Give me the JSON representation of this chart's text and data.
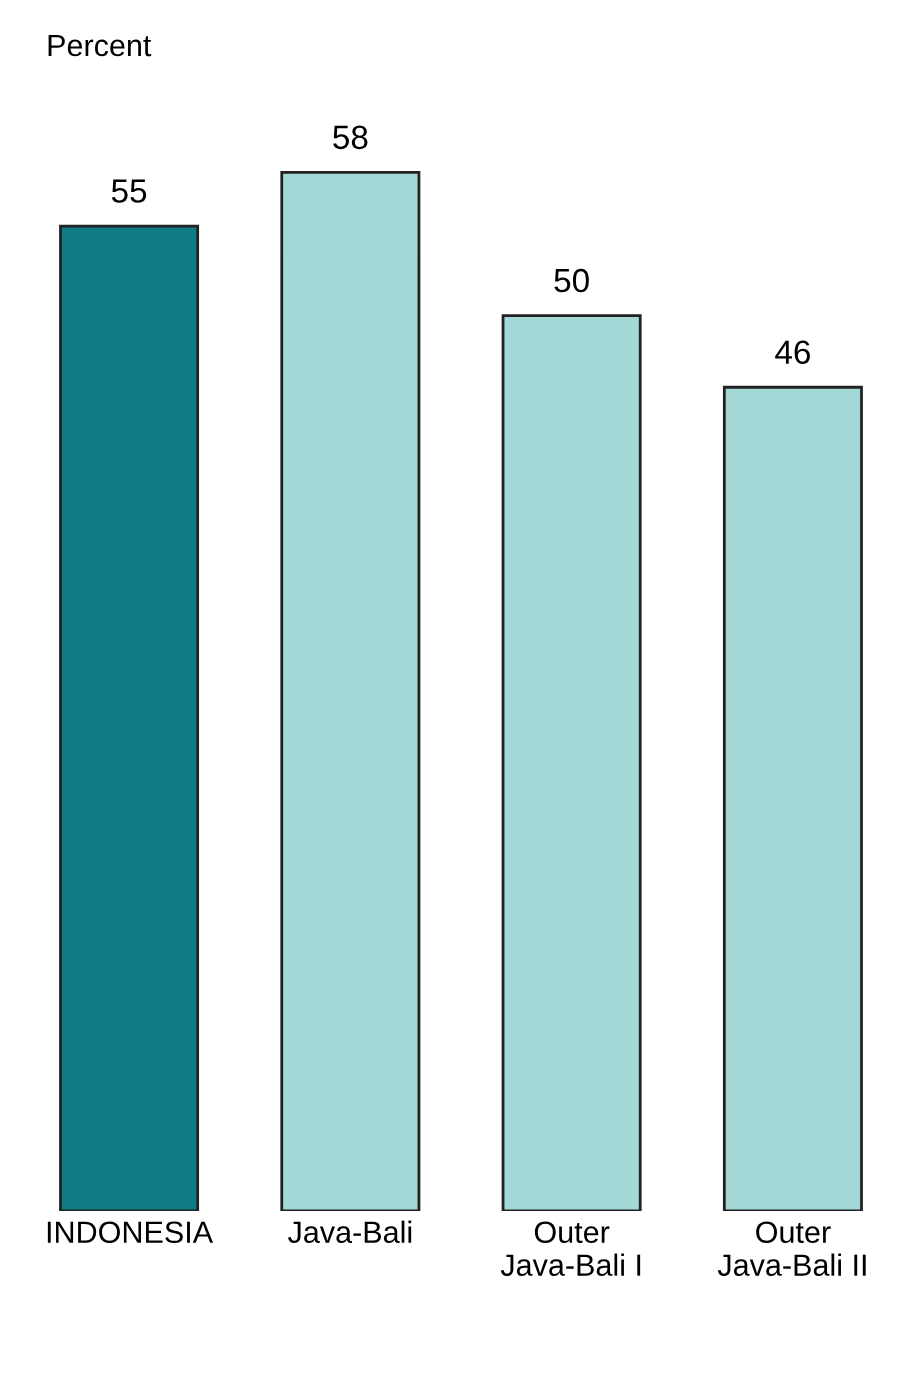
{
  "chart_data": {
    "type": "bar",
    "ylabel": "Percent",
    "categories": [
      "INDONESIA",
      "Java-Bali",
      "Outer\nJava-Bali I",
      "Outer\nJava-Bali II"
    ],
    "values": [
      55,
      58,
      50,
      46
    ],
    "colors": [
      "#0f7b82",
      "#a3d8d6",
      "#a3d8d6",
      "#a3d8d6"
    ],
    "data_labels": true,
    "grid": false,
    "legend": false,
    "tick_labels": "x"
  }
}
